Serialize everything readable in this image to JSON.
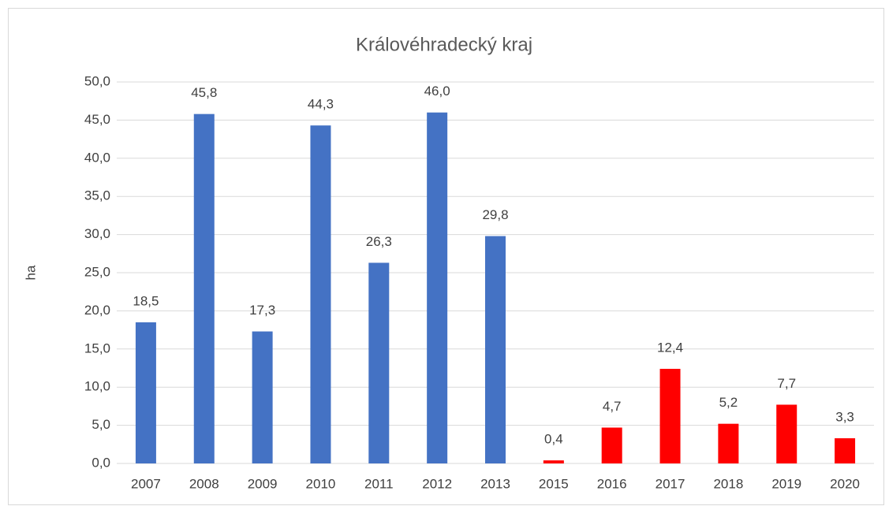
{
  "chart_data": {
    "type": "bar",
    "title": "Královéhradecký kraj",
    "y_label": "ha",
    "categories": [
      "2007",
      "2008",
      "2009",
      "2010",
      "2011",
      "2012",
      "2013",
      "2015",
      "2016",
      "2017",
      "2018",
      "2019",
      "2020"
    ],
    "values": [
      18.5,
      45.8,
      17.3,
      44.3,
      26.3,
      46.0,
      29.8,
      0.4,
      4.7,
      12.4,
      5.2,
      7.7,
      3.3
    ],
    "value_labels": [
      "18,5",
      "45,8",
      "17,3",
      "44,3",
      "26,3",
      "46,0",
      "29,8",
      "0,4",
      "4,7",
      "12,4",
      "5,2",
      "7,7",
      "3,3"
    ],
    "colors": [
      "#4472c4",
      "#4472c4",
      "#4472c4",
      "#4472c4",
      "#4472c4",
      "#4472c4",
      "#4472c4",
      "#ff0000",
      "#ff0000",
      "#ff0000",
      "#ff0000",
      "#ff0000",
      "#ff0000"
    ],
    "ylim": [
      0,
      50
    ],
    "yticks": [
      {
        "value": 0,
        "label": "0,0"
      },
      {
        "value": 5,
        "label": "5,0"
      },
      {
        "value": 10,
        "label": "10,0"
      },
      {
        "value": 15,
        "label": "15,0"
      },
      {
        "value": 20,
        "label": "20,0"
      },
      {
        "value": 25,
        "label": "25,0"
      },
      {
        "value": 30,
        "label": "30,0"
      },
      {
        "value": 35,
        "label": "35,0"
      },
      {
        "value": 40,
        "label": "40,0"
      },
      {
        "value": 45,
        "label": "45,0"
      },
      {
        "value": 50,
        "label": "50,0"
      }
    ],
    "grid": true
  }
}
